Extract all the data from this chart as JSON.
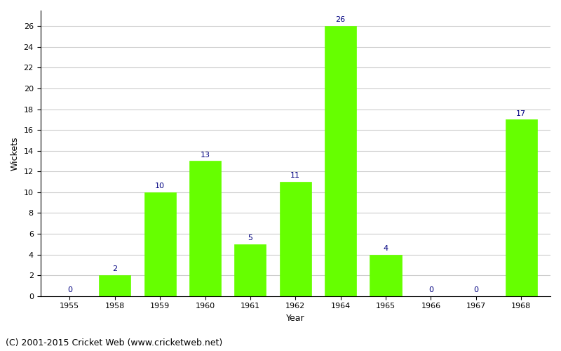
{
  "categories": [
    "1955",
    "1958",
    "1959",
    "1960",
    "1961",
    "1962",
    "1964",
    "1965",
    "1966",
    "1967",
    "1968"
  ],
  "values": [
    0,
    2,
    10,
    13,
    5,
    11,
    26,
    4,
    0,
    0,
    17
  ],
  "bar_color": "#66ff00",
  "bar_edge_color": "#66ff00",
  "xlabel": "Year",
  "ylabel": "Wickets",
  "ylim": [
    0,
    27.5
  ],
  "yticks": [
    0,
    2,
    4,
    6,
    8,
    10,
    12,
    14,
    16,
    18,
    20,
    22,
    24,
    26
  ],
  "annotation_color": "#000080",
  "annotation_fontsize": 8,
  "grid_color": "#cccccc",
  "background_color": "#ffffff",
  "footer": "(C) 2001-2015 Cricket Web (www.cricketweb.net)",
  "footer_fontsize": 9,
  "axis_label_fontsize": 9,
  "tick_fontsize": 8,
  "bar_width": 0.7
}
